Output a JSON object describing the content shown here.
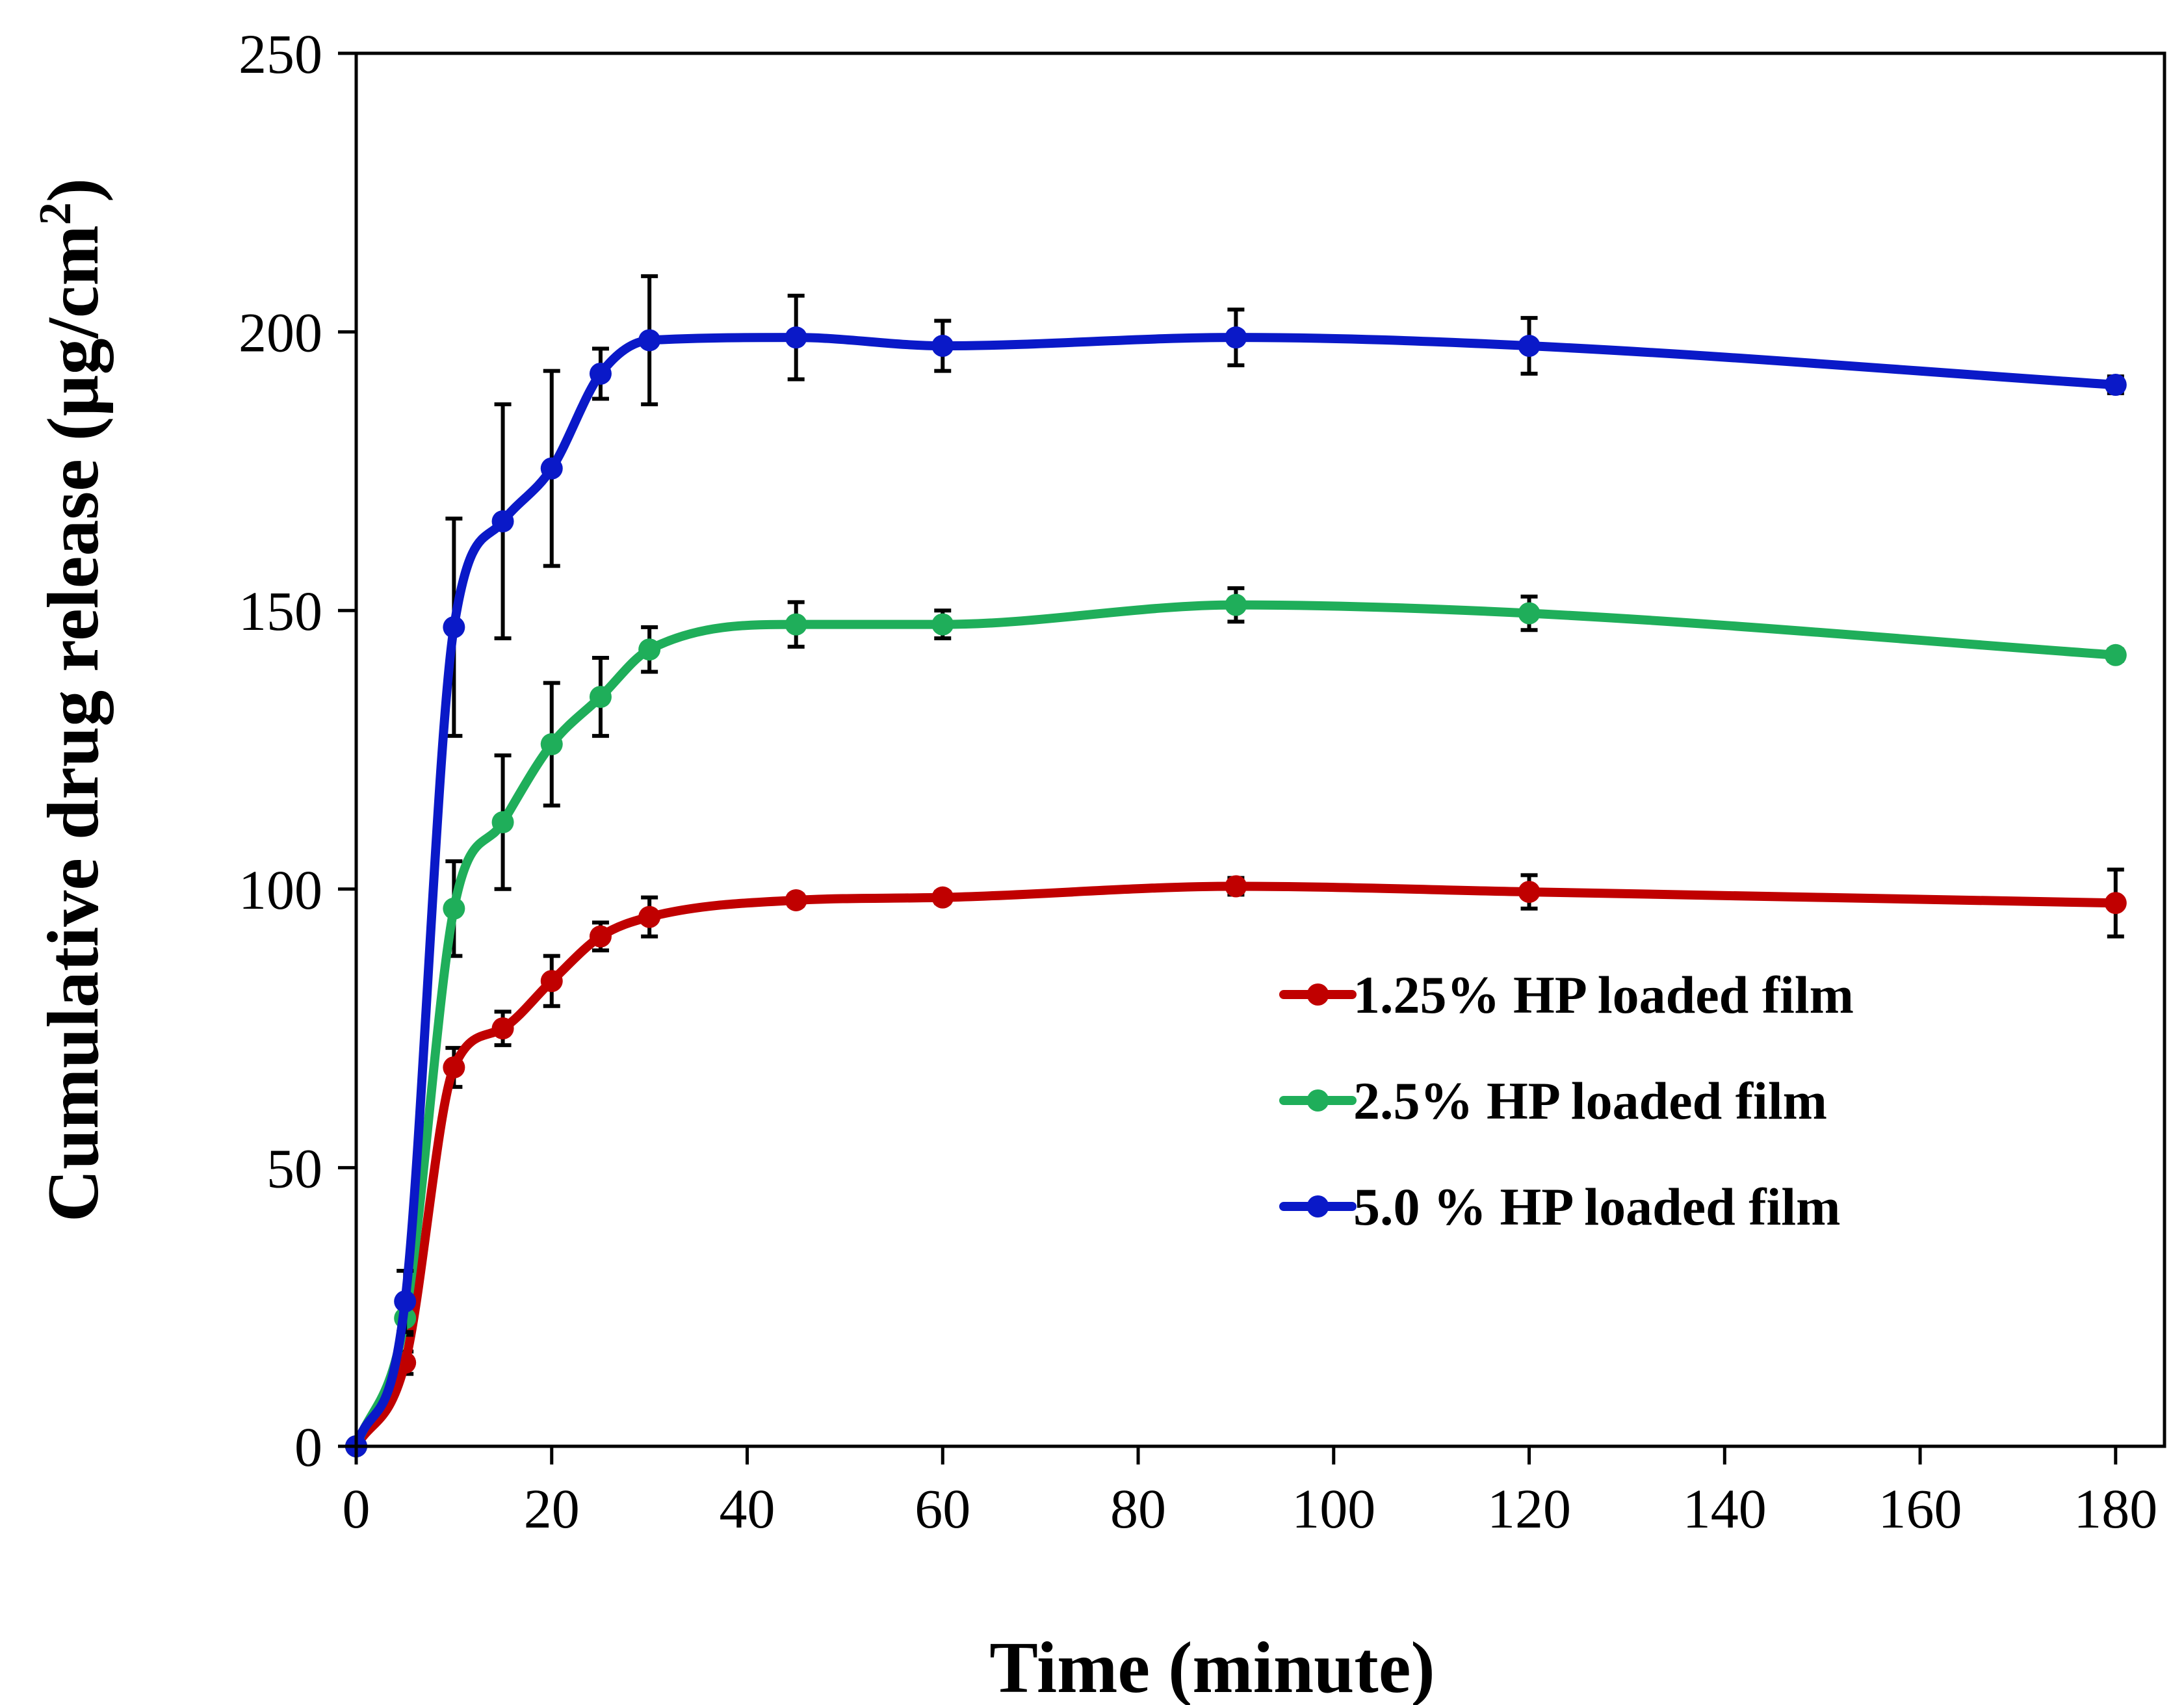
{
  "chart_data": {
    "type": "line",
    "title": "",
    "xlabel": "Time (minute)",
    "ylabel_main": "Cumulative drug release (µg/cm",
    "ylabel_sup": "2",
    "ylabel_close": ")",
    "xlim": [
      0,
      185
    ],
    "ylim": [
      0,
      250
    ],
    "xticks": [
      0,
      20,
      40,
      60,
      80,
      100,
      120,
      140,
      160,
      180
    ],
    "yticks": [
      0,
      50,
      100,
      150,
      200,
      250
    ],
    "grid": false,
    "legend_position": "lower-right",
    "x": [
      0,
      5,
      10,
      15,
      20,
      25,
      30,
      45,
      60,
      90,
      120,
      180
    ],
    "series": [
      {
        "name": "1.25% HP loaded film",
        "color": "#c00000",
        "values": [
          0,
          15,
          68,
          75,
          83.5,
          91.5,
          95,
          98,
          98.5,
          100.5,
          99.5,
          97.5
        ],
        "errors": [
          0,
          2,
          3.5,
          3,
          4.5,
          2.5,
          3.5,
          1,
          1,
          1.5,
          3,
          6
        ]
      },
      {
        "name": "2.5% HP loaded film",
        "color": "#1fae5a",
        "values": [
          0,
          23,
          96.5,
          112,
          126,
          134.5,
          143,
          147.5,
          147.5,
          151,
          149.5,
          142
        ],
        "errors": [
          0,
          3,
          8.5,
          12,
          11,
          7,
          4,
          4,
          2.5,
          3,
          3,
          1
        ]
      },
      {
        "name": "5.0 % HP loaded film",
        "color": "#0a19c8",
        "values": [
          0,
          26,
          147,
          166,
          175.5,
          192.5,
          198.5,
          199,
          197.5,
          199,
          197.5,
          190.5
        ],
        "errors": [
          0,
          5.5,
          19.5,
          21,
          17.5,
          4.5,
          11.5,
          7.5,
          4.5,
          5,
          5,
          1.5
        ]
      }
    ]
  }
}
